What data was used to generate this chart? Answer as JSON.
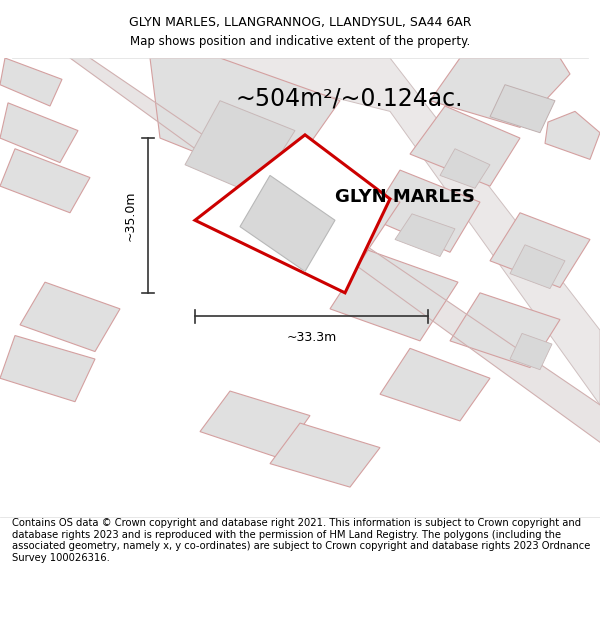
{
  "title_line1": "GLYN MARLES, LLANGRANNOG, LLANDYSUL, SA44 6AR",
  "title_line2": "Map shows position and indicative extent of the property.",
  "area_text": "~504m²/~0.124ac.",
  "property_label": "GLYN MARLES",
  "dim_height": "~35.0m",
  "dim_width": "~33.3m",
  "footer_text": "Contains OS data © Crown copyright and database right 2021. This information is subject to Crown copyright and database rights 2023 and is reproduced with the permission of HM Land Registry. The polygons (including the associated geometry, namely x, y co-ordinates) are subject to Crown copyright and database rights 2023 Ordnance Survey 100026316.",
  "title_fontsize": 9.0,
  "area_fontsize": 17,
  "label_fontsize": 13,
  "dim_fontsize": 9,
  "footer_fontsize": 7.2,
  "main_plot_color": "#cc0000",
  "road_fill": "#e0dede",
  "road_edge": "#c8b8b8",
  "plot_fill": "#e0e0e0",
  "plot_edge": "#d4a0a0",
  "inner_fill": "#d8d8d8",
  "inner_edge": "#c0c0c0",
  "dim_color": "#333333",
  "bg_color": "#ffffff",
  "map_bg": "#f8f8f8"
}
